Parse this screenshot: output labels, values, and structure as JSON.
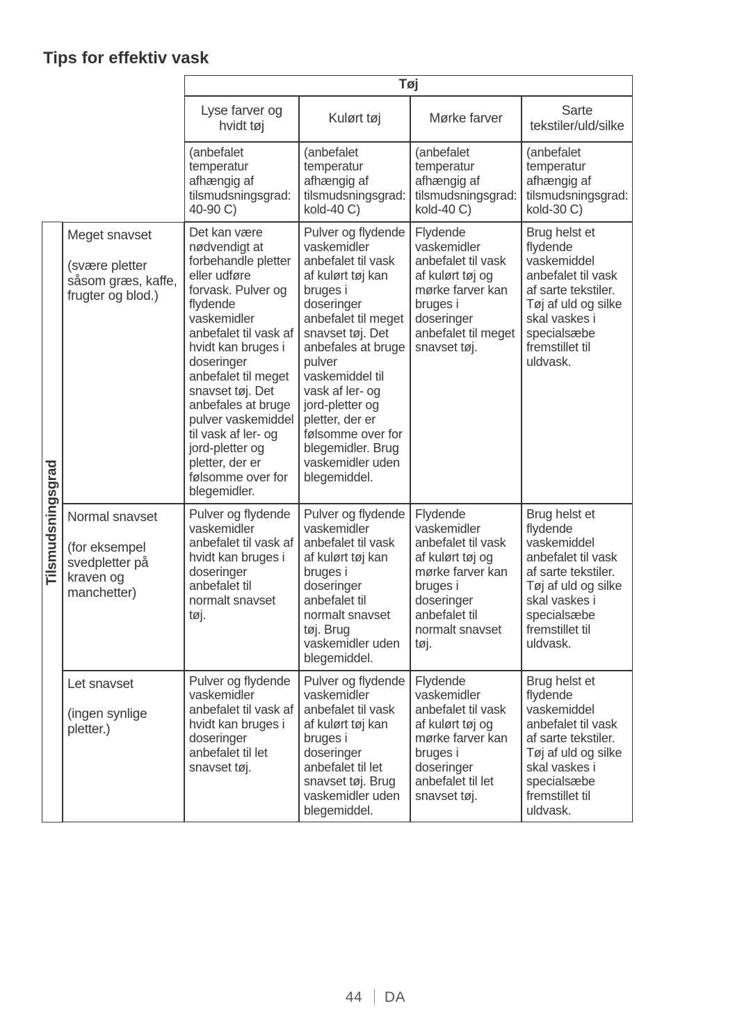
{
  "title": "Tips for effektiv vask",
  "table_header_group": "Tøj",
  "columns": [
    "Lyse farver og hvidt tøj",
    "Kulørt tøj",
    "Mørke farver",
    "Sarte tekstiler/uld/silke"
  ],
  "column_subs": [
    "(anbefalet temperatur afhængig af tilsmudsningsgrad: 40-90 C)",
    "(anbefalet temperatur afhængig af tilsmudsningsgrad: kold-40 C)",
    "(anbefalet temperatur afhængig af tilsmudsningsgrad: kold-40 C)",
    "(anbefalet temperatur afhængig af tilsmudsningsgrad: kold-30 C)"
  ],
  "side_label": "Tilsmudsningsgrad",
  "rows": [
    {
      "header_lead": "Meget snavset",
      "header_rest": "(svære pletter såsom græs, kaffe, frugter og blod.)",
      "cells": [
        "Det kan være nødvendigt at forbehandle pletter eller udføre forvask. Pulver og flydende vaskemidler anbefalet til vask af hvidt kan bruges i doseringer anbefalet til meget snavset tøj. Det anbefales at bruge pulver vaskemiddel til vask af ler- og jord-pletter og pletter, der er følsomme over for blegemidler.",
        "Pulver og flydende vaskemidler anbefalet til vask af kulørt tøj kan bruges i doseringer anbefalet til meget snavset tøj. Det anbefales at bruge pulver vaskemiddel til vask af ler- og jord-pletter og pletter, der er følsomme over for blegemidler. Brug vaskemidler uden blegemiddel.",
        "Flydende vaskemidler anbefalet til vask af kulørt tøj og mørke farver kan bruges i doseringer anbefalet til meget snavset tøj.",
        "Brug helst et flydende vaskemiddel anbefalet til vask af sarte tekstiler. Tøj af uld og silke skal vaskes i specialsæbe fremstillet til uldvask."
      ]
    },
    {
      "header_lead": "Normal snavset",
      "header_rest": "(for eksempel svedpletter på kraven og manchetter)",
      "cells": [
        "Pulver og flydende vaskemidler anbefalet til vask af hvidt kan bruges i doseringer anbefalet til normalt snavset tøj.",
        "Pulver og flydende vaskemidler anbefalet til vask af kulørt tøj kan bruges i doseringer anbefalet til normalt snavset tøj. Brug vaskemidler uden blegemiddel.",
        "Flydende vaskemidler anbefalet til vask af kulørt tøj og mørke farver kan bruges i doseringer anbefalet til normalt snavset tøj.",
        "Brug helst et flydende vaskemiddel anbefalet til vask af sarte tekstiler. Tøj af uld og silke skal vaskes i specialsæbe fremstillet til uldvask."
      ]
    },
    {
      "header_lead": "Let snavset",
      "header_rest": "(ingen synlige pletter.)",
      "cells": [
        "Pulver og flydende vaskemidler anbefalet til vask af hvidt kan bruges i doseringer anbefalet til let snavset tøj.",
        "Pulver og flydende vaskemidler anbefalet til vask af kulørt tøj kan bruges i doseringer anbefalet til let snavset tøj. Brug vaskemidler uden blegemiddel.",
        "Flydende vaskemidler anbefalet til vask af kulørt tøj og mørke farver kan bruges i doseringer anbefalet til let snavset tøj.",
        "Brug helst et flydende vaskemiddel anbefalet til vask af sarte tekstiler. Tøj af uld og silke skal vaskes i specialsæbe fremstillet til uldvask."
      ]
    }
  ],
  "footer_page": "44",
  "footer_lang": "DA"
}
